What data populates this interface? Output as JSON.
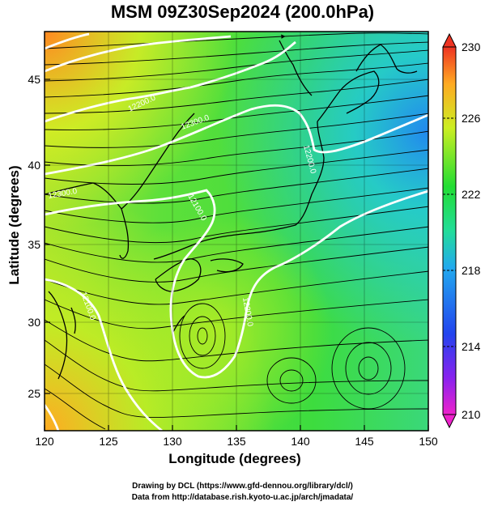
{
  "title": "MSM 09Z30Sep2024 (200.0hPa)",
  "x_axis": {
    "label": "Longitude (degrees)",
    "ticks": [
      "120",
      "125",
      "130",
      "135",
      "140",
      "145",
      "150"
    ]
  },
  "y_axis": {
    "label": "Latitude  (degrees)",
    "ticks": [
      "25",
      "30",
      "35",
      "40",
      "45"
    ]
  },
  "colorbar": {
    "ticks": [
      "230",
      "226",
      "222",
      "218",
      "214",
      "210"
    ],
    "min": 210,
    "max": 230
  },
  "contour_labels": [
    "12200.0",
    "12300.0",
    "12200.0",
    "12100.0",
    "12100.0",
    "12200.0",
    "12300.0"
  ],
  "credits": {
    "line1": "Drawing by DCL (https://www.gfd-dennou.org/library/dcl/)",
    "line2": "Data from http://database.rish.kyoto-u.ac.jp/arch/jmadata/"
  },
  "colors": {
    "field_green": "#33dd33",
    "field_yellow": "#ccee22",
    "field_orange": "#ff9922",
    "field_cyan": "#22cccc",
    "field_blue": "#2288ee",
    "contour": "#ffffff",
    "coastline": "#000000"
  }
}
